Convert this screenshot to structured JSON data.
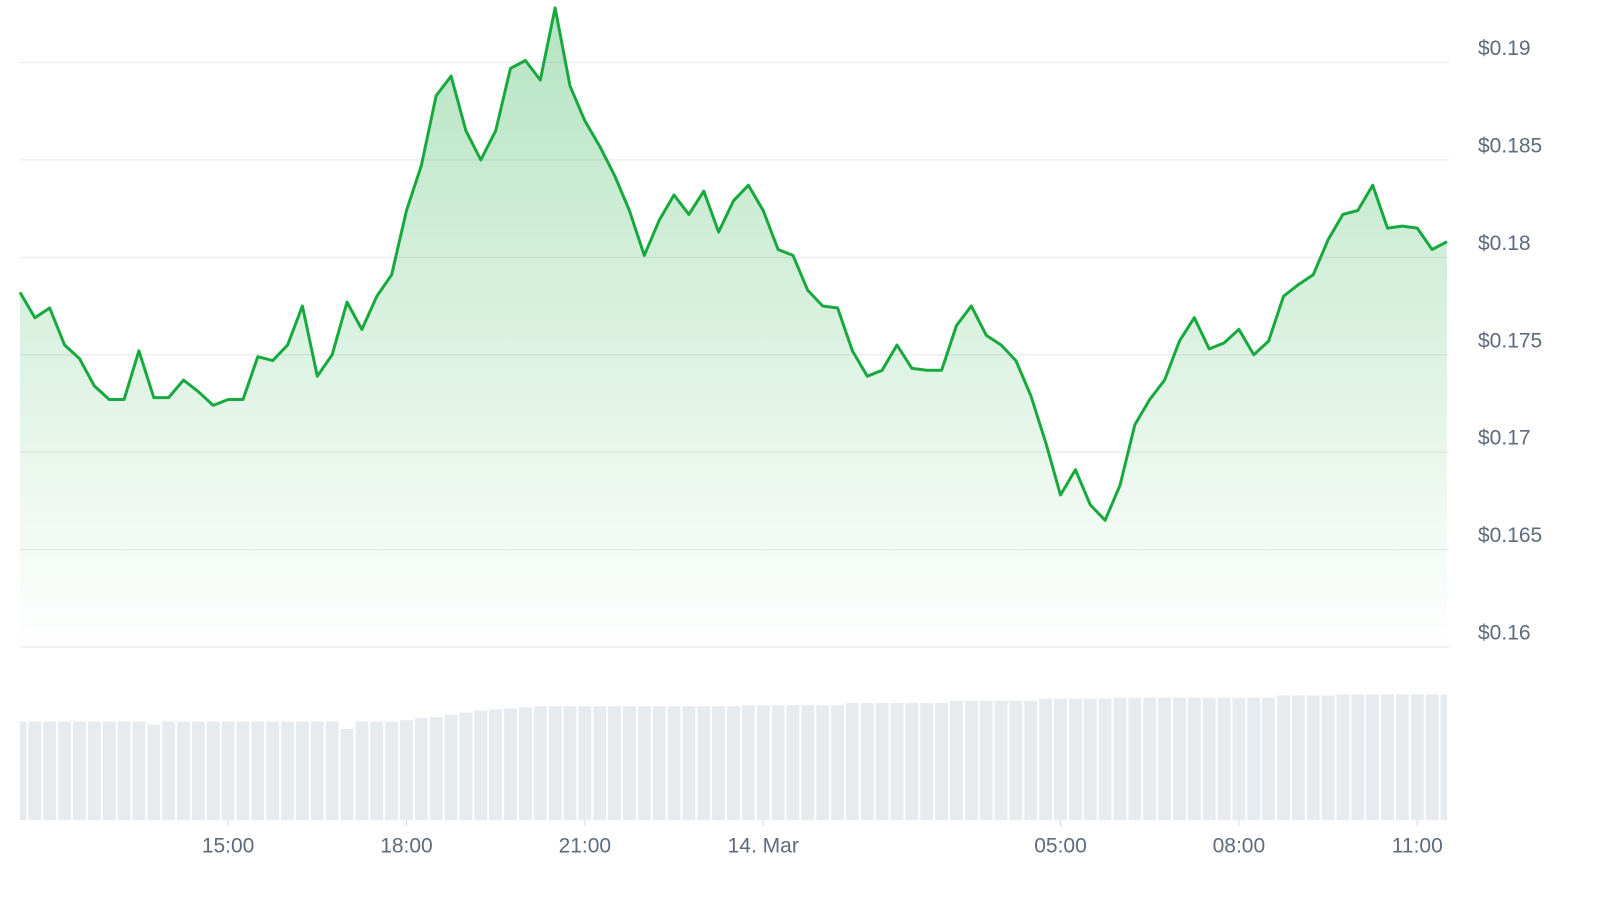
{
  "chart_data": {
    "type": "area",
    "color": "#18a93e",
    "x": [
      11.5,
      11.75,
      12,
      12.25,
      12.5,
      12.75,
      13,
      13.25,
      13.5,
      13.75,
      14,
      14.25,
      14.5,
      14.75,
      15,
      15.25,
      15.5,
      15.75,
      16,
      16.25,
      16.5,
      16.75,
      17,
      17.25,
      17.5,
      17.75,
      18,
      18.25,
      18.5,
      18.75,
      19,
      19.25,
      19.5,
      19.75,
      20,
      20.25,
      20.5,
      20.75,
      21,
      21.25,
      21.5,
      21.75,
      22,
      22.25,
      22.5,
      22.75,
      23,
      23.25,
      23.5,
      23.75,
      24,
      24.25,
      24.5,
      24.75,
      25,
      25.25,
      25.5,
      25.75,
      26,
      26.25,
      26.5,
      26.75,
      27,
      27.25,
      27.5,
      27.75,
      28,
      28.25,
      28.5,
      28.75,
      29,
      29.25,
      29.5,
      29.75,
      30,
      30.25,
      30.5,
      30.75,
      31,
      31.25,
      31.5,
      31.75,
      32,
      32.25,
      32.5,
      32.75,
      33,
      33.25,
      33.5,
      33.75,
      34,
      34.25,
      34.5,
      34.75,
      35,
      35.25,
      35.5
    ],
    "values": [
      0.1782,
      0.1769,
      0.1774,
      0.1755,
      0.1748,
      0.1734,
      0.1727,
      0.1727,
      0.1752,
      0.1728,
      0.1728,
      0.1737,
      0.1731,
      0.1724,
      0.1727,
      0.1727,
      0.1749,
      0.1747,
      0.1755,
      0.1775,
      0.1739,
      0.175,
      0.1777,
      0.1763,
      0.178,
      0.1791,
      0.1824,
      0.1847,
      0.1883,
      0.1893,
      0.1865,
      0.185,
      0.1865,
      0.1897,
      0.1901,
      0.1891,
      0.1928,
      0.1888,
      0.187,
      0.1857,
      0.1842,
      0.1824,
      0.1801,
      0.1819,
      0.1832,
      0.1822,
      0.1834,
      0.1813,
      0.1829,
      0.1837,
      0.1824,
      0.1804,
      0.1801,
      0.1783,
      0.1775,
      0.1774,
      0.1752,
      0.1739,
      0.1742,
      0.1755,
      0.1743,
      0.1742,
      0.1742,
      0.1765,
      0.1775,
      0.176,
      0.1755,
      0.1747,
      0.1729,
      0.1705,
      0.1678,
      0.1691,
      0.1673,
      0.1665,
      0.1683,
      0.1714,
      0.1727,
      0.1737,
      0.1757,
      0.1769,
      0.1753,
      0.1756,
      0.1763,
      0.175,
      0.1757,
      0.178,
      0.1786,
      0.1791,
      0.1809,
      0.1822,
      0.1824,
      0.1837,
      0.1815,
      0.1816,
      0.1815,
      0.1804,
      0.1808
    ],
    "xlim": [
      11.5,
      35.5
    ],
    "xticks": [
      {
        "value": 15,
        "label": "15:00"
      },
      {
        "value": 18,
        "label": "18:00"
      },
      {
        "value": 21,
        "label": "21:00"
      },
      {
        "value": 24,
        "label": "14. Mar"
      },
      {
        "value": 29,
        "label": "05:00"
      },
      {
        "value": 32,
        "label": "08:00"
      },
      {
        "value": 35,
        "label": "11:00"
      }
    ],
    "ylim": [
      0.16,
      0.193
    ],
    "yticks": [
      {
        "value": 0.16,
        "label": "$0.16"
      },
      {
        "value": 0.165,
        "label": "$0.165"
      },
      {
        "value": 0.17,
        "label": "$0.17"
      },
      {
        "value": 0.175,
        "label": "$0.175"
      },
      {
        "value": 0.18,
        "label": "$0.18"
      },
      {
        "value": 0.185,
        "label": "$0.185"
      },
      {
        "value": 0.19,
        "label": "$0.19"
      }
    ],
    "grid": true,
    "volume": {
      "color": "#e6ebf0",
      "ylim": [
        0,
        120
      ],
      "values": [
        91,
        91,
        91,
        91,
        91,
        91,
        91,
        91,
        91,
        88,
        91,
        91,
        91,
        91,
        91,
        91,
        91,
        91,
        91,
        91,
        91,
        91,
        84,
        91,
        91,
        91,
        92,
        94,
        95,
        97,
        99,
        101,
        102,
        103,
        104,
        105,
        105,
        105,
        105,
        105,
        105,
        105,
        105,
        105,
        105,
        105,
        105,
        105,
        105,
        106,
        106,
        106,
        106,
        106,
        106,
        106,
        108,
        108,
        108,
        108,
        108,
        108,
        108,
        110,
        110,
        110,
        110,
        110,
        110,
        112,
        112,
        112,
        112,
        112,
        113,
        113,
        113,
        113,
        113,
        113,
        113,
        113,
        113,
        113,
        113,
        115,
        115,
        115,
        115,
        116,
        116,
        116,
        116,
        116,
        116,
        116,
        116
      ]
    }
  }
}
